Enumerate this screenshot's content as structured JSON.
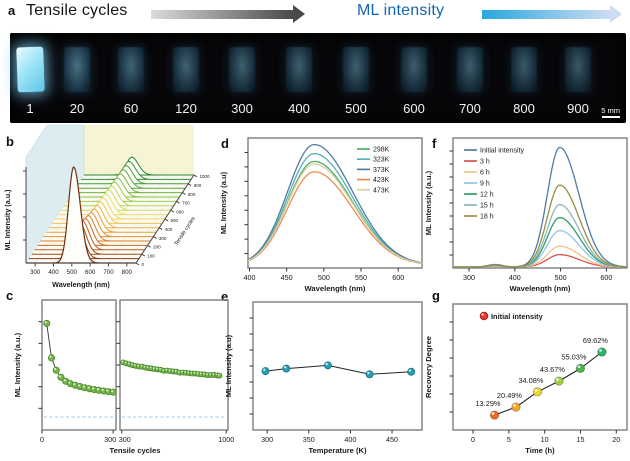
{
  "panel_a": {
    "letter": "a",
    "left_arrow_label": "Tensile cycles",
    "right_arrow_label": "ML intensity",
    "right_label_color": "#1665b0",
    "gray_arrow": {
      "from": "#dcdcdc",
      "to": "#4a4a4a"
    },
    "blue_arrow": {
      "from": "#28a8e0",
      "to": "#cddcf2"
    },
    "samples": [
      {
        "label": "1",
        "brightness": 1.0
      },
      {
        "label": "20",
        "brightness": 0.58
      },
      {
        "label": "60",
        "brightness": 0.46
      },
      {
        "label": "120",
        "brightness": 0.44
      },
      {
        "label": "300",
        "brightness": 0.42
      },
      {
        "label": "400",
        "brightness": 0.41
      },
      {
        "label": "500",
        "brightness": 0.42
      },
      {
        "label": "600",
        "brightness": 0.4
      },
      {
        "label": "700",
        "brightness": 0.4
      },
      {
        "label": "800",
        "brightness": 0.36
      },
      {
        "label": "900",
        "brightness": 0.34
      }
    ],
    "scale_bar_label": "5 mm"
  },
  "panel_letters": {
    "b": "b",
    "c": "c",
    "d": "d",
    "e": "e",
    "f": "f",
    "g": "g"
  },
  "chart_data": [
    {
      "id": "b",
      "type": "line-3d-waterfall",
      "xlabel": "Wavelength (nm)",
      "ylabel": "ML Intensity (a.u.)",
      "zlabel": "Tensile cycles",
      "xlim": [
        250,
        850
      ],
      "x_ticks": [
        300,
        400,
        500,
        600,
        700,
        800
      ],
      "z_ticks": [
        0,
        100,
        200,
        300,
        400,
        500,
        600,
        700,
        800,
        900,
        1000
      ],
      "peak_center": 510,
      "sigma_left": 28,
      "sigma_right": 36,
      "wall_left_color": "#dcecf0",
      "wall_back_color": "#f7f4d6",
      "curves": [
        {
          "cycle": 0,
          "amp": 1.0,
          "color": "#6f2f12"
        },
        {
          "cycle": 50,
          "amp": 0.4,
          "color": "#8a3f16"
        },
        {
          "cycle": 100,
          "amp": 0.33,
          "color": "#a34f1a"
        },
        {
          "cycle": 150,
          "amp": 0.3,
          "color": "#ba5e1e"
        },
        {
          "cycle": 200,
          "amp": 0.28,
          "color": "#cc6d22"
        },
        {
          "cycle": 250,
          "amp": 0.265,
          "color": "#db7d27"
        },
        {
          "cycle": 300,
          "amp": 0.252,
          "color": "#e68e2e"
        },
        {
          "cycle": 350,
          "amp": 0.242,
          "color": "#eda038"
        },
        {
          "cycle": 400,
          "amp": 0.233,
          "color": "#f2b244"
        },
        {
          "cycle": 450,
          "amp": 0.226,
          "color": "#f4c452"
        },
        {
          "cycle": 500,
          "amp": 0.22,
          "color": "#f2d35e"
        },
        {
          "cycle": 550,
          "amp": 0.214,
          "color": "#e8dc63"
        },
        {
          "cycle": 600,
          "amp": 0.209,
          "color": "#d4da5f"
        },
        {
          "cycle": 650,
          "amp": 0.205,
          "color": "#bcd457"
        },
        {
          "cycle": 700,
          "amp": 0.201,
          "color": "#a2cb4e"
        },
        {
          "cycle": 750,
          "amp": 0.198,
          "color": "#88c046"
        },
        {
          "cycle": 800,
          "amp": 0.195,
          "color": "#6fb43e"
        },
        {
          "cycle": 850,
          "amp": 0.192,
          "color": "#58a838"
        },
        {
          "cycle": 900,
          "amp": 0.19,
          "color": "#449b33"
        },
        {
          "cycle": 950,
          "amp": 0.188,
          "color": "#338f2f"
        },
        {
          "cycle": 1000,
          "amp": 0.186,
          "color": "#26822c"
        }
      ]
    },
    {
      "id": "c",
      "type": "scatter",
      "xlabel": "Tensile cycles",
      "ylabel": "ML Intensity (a.u.)",
      "marker_color": "#76b84e",
      "marker_edge": "#4e8a2e",
      "baseline_color": "#9cc9e8",
      "baseline_y": 0.1,
      "left": {
        "xlim": [
          0,
          312
        ],
        "x_ticks": [
          0,
          300
        ],
        "points": [
          [
            20,
            0.82
          ],
          [
            40,
            0.555
          ],
          [
            60,
            0.46
          ],
          [
            80,
            0.405
          ],
          [
            100,
            0.375
          ],
          [
            120,
            0.356
          ],
          [
            140,
            0.344
          ],
          [
            160,
            0.334
          ],
          [
            180,
            0.325
          ],
          [
            200,
            0.317
          ],
          [
            220,
            0.311
          ],
          [
            240,
            0.305
          ],
          [
            260,
            0.3
          ],
          [
            280,
            0.295
          ],
          [
            300,
            0.291
          ]
        ]
      },
      "right": {
        "xlim": [
          288,
          1012
        ],
        "x_ticks": [
          300,
          1000
        ],
        "points": [
          [
            310,
            0.52
          ],
          [
            331,
            0.512
          ],
          [
            352,
            0.505
          ],
          [
            373,
            0.498
          ],
          [
            394,
            0.493
          ],
          [
            415,
            0.488
          ],
          [
            436,
            0.487
          ],
          [
            457,
            0.48
          ],
          [
            478,
            0.476
          ],
          [
            499,
            0.473
          ],
          [
            520,
            0.469
          ],
          [
            541,
            0.466
          ],
          [
            562,
            0.463
          ],
          [
            583,
            0.455
          ],
          [
            604,
            0.457
          ],
          [
            625,
            0.453
          ],
          [
            646,
            0.45
          ],
          [
            667,
            0.448
          ],
          [
            688,
            0.441
          ],
          [
            709,
            0.442
          ],
          [
            730,
            0.44
          ],
          [
            751,
            0.437
          ],
          [
            772,
            0.434
          ],
          [
            793,
            0.434
          ],
          [
            814,
            0.43
          ],
          [
            835,
            0.428
          ],
          [
            856,
            0.427
          ],
          [
            877,
            0.422
          ],
          [
            898,
            0.423
          ],
          [
            919,
            0.424
          ],
          [
            940,
            0.42
          ],
          [
            955,
            0.418
          ]
        ]
      }
    },
    {
      "id": "d",
      "type": "line",
      "xlabel": "Wavelength (nm)",
      "ylabel": "ML Intensity (a.u)",
      "xlim": [
        398,
        632
      ],
      "x_ticks": [
        400,
        450,
        500,
        550,
        600
      ],
      "peak_center": 487,
      "sigma_left": 36,
      "sigma_right": 52,
      "base": 0.02,
      "series": [
        {
          "name": "298K",
          "color": "#4fae6b",
          "amp": 0.8
        },
        {
          "name": "323K",
          "color": "#58aebb",
          "amp": 0.86
        },
        {
          "name": "373K",
          "color": "#527e9e",
          "amp": 0.93
        },
        {
          "name": "423K",
          "color": "#f08a50",
          "amp": 0.72
        },
        {
          "name": "473K",
          "color": "#d8d2a0",
          "amp": 0.78
        }
      ]
    },
    {
      "id": "e",
      "type": "scatter-line",
      "xlabel": "Temperature (K)",
      "ylabel": "ML Intensity (a.u)",
      "xlim": [
        283,
        486
      ],
      "x_ticks": [
        300,
        350,
        400,
        450
      ],
      "marker_color": "#2aa0ad",
      "marker_edge": "#15788a",
      "points": [
        [
          298,
          0.46
        ],
        [
          323,
          0.48
        ],
        [
          373,
          0.505
        ],
        [
          423,
          0.435
        ],
        [
          473,
          0.455
        ]
      ]
    },
    {
      "id": "f",
      "type": "line",
      "xlabel": "Wavelength (nm)",
      "ylabel": "ML Intensity (a.u.)",
      "xlim": [
        265,
        645
      ],
      "x_ticks": [
        300,
        400,
        500,
        600
      ],
      "peak_center": 498,
      "sigma_left": 27,
      "sigma_right": 42,
      "base": 0.008,
      "bump": {
        "center": 357,
        "sigma": 16,
        "amp": 0.02
      },
      "series": [
        {
          "name": "Initial intensity",
          "color": "#4e7ca8",
          "amp": 0.92
        },
        {
          "name": "3 h",
          "color": "#d9534f",
          "amp": 0.095
        },
        {
          "name": "6 h",
          "color": "#f3c389",
          "amp": 0.16
        },
        {
          "name": "9 h",
          "color": "#92c5e8",
          "amp": 0.28
        },
        {
          "name": "12 h",
          "color": "#2f9e68",
          "amp": 0.38
        },
        {
          "name": "15 h",
          "color": "#8fb4ba",
          "amp": 0.48
        },
        {
          "name": "18 h",
          "color": "#98903f",
          "amp": 0.63
        }
      ]
    },
    {
      "id": "g",
      "type": "scatter-line",
      "xlabel": "Time (h)",
      "ylabel": "Recovery Degree",
      "xlim": [
        -2.8,
        21.5
      ],
      "x_ticks": [
        0,
        5,
        10,
        15,
        20
      ],
      "ylim": [
        0,
        112.5
      ],
      "legend_label": "Initial intensity",
      "legend_marker_color": "#e8362a",
      "points": [
        {
          "t": 3,
          "value": 13.29,
          "label": "13.29%",
          "color": "#f26a21"
        },
        {
          "t": 6,
          "value": 20.49,
          "label": "20.49%",
          "color": "#f5a623"
        },
        {
          "t": 9,
          "value": 34.08,
          "label": "34.08%",
          "color": "#f0d52c"
        },
        {
          "t": 12,
          "value": 43.67,
          "label": "43.67%",
          "color": "#a2cf3a"
        },
        {
          "t": 15,
          "value": 55.03,
          "label": "55.03%",
          "color": "#4bb648"
        },
        {
          "t": 18,
          "value": 69.62,
          "label": "69.62%",
          "color": "#2db569"
        }
      ]
    }
  ]
}
